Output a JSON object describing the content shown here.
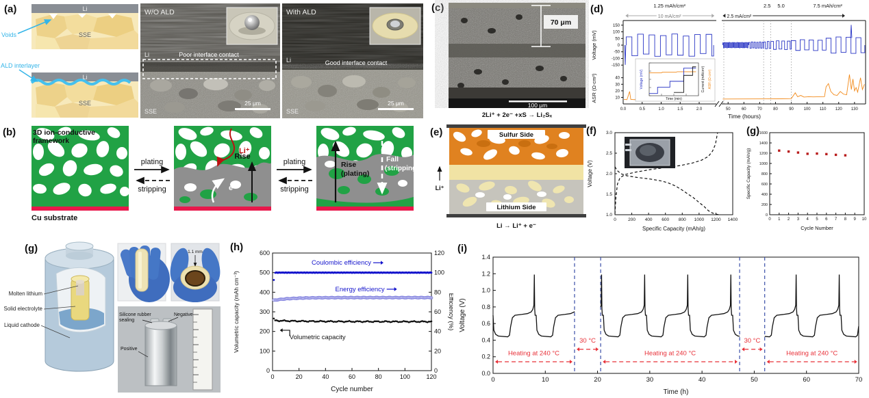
{
  "panels": {
    "a": {
      "label": "(a)",
      "voids": "Voids",
      "ald_interlayer": "ALD interlayer",
      "li": "Li",
      "sse": "SSE",
      "accent": "#35b5e8",
      "sem": [
        {
          "title": "W/O ALD",
          "li": "Li",
          "sse": "SSE",
          "note": "Poor interface contact",
          "scale": "25 μm"
        },
        {
          "title": "With ALD",
          "li": "Li",
          "sse": "SSE",
          "note": "Good interface contact",
          "scale": "25 μm"
        }
      ]
    },
    "b": {
      "label": "(b)",
      "framework_line1": "3D ion-conductive",
      "framework_line2": "framework",
      "cu": "Cu substrate",
      "plating": "plating",
      "stripping": "stripping",
      "li_ion": "Li⁺",
      "electron": "e⁻",
      "rise": "Rise",
      "rise2": "Rise",
      "rise2b": "(plating)",
      "fall": "Fall",
      "fallb": "(stripping)"
    },
    "c": {
      "label": "(c)",
      "thickness": "70 μm",
      "scale": "100 μm",
      "equation": "2Li⁺ + 2e⁻ +xS → Li₂Sₓ"
    },
    "e": {
      "label": "(e)",
      "sulfur": "Sulfur Side",
      "lithium": "Lithium Side",
      "li_ion": "Li⁺",
      "equation": "Li → Li⁺ + e⁻"
    },
    "g3d": {
      "label": "(g)",
      "molten": "Molten lithium",
      "solid": "Solid electrolyte",
      "liquid": "Liquid cathode",
      "thickness": "1.1 mm",
      "sealing1": "Silicone rubber",
      "sealing2": "sealing",
      "negative": "Negative",
      "positive": "Positive"
    }
  },
  "chart_data": [
    {
      "id": "d",
      "type": "line",
      "panel_label": "(d)",
      "xlabel": "Time (hours)",
      "ylabel_top": "Voltage (mV)",
      "ylabel_bottom": "ASR (Ω-cm²)",
      "top": {
        "ylim": [
          -185,
          185
        ],
        "yticks": [
          150,
          100,
          50,
          0,
          -50,
          -100,
          -150
        ]
      },
      "bottom": {
        "ylim": [
          0,
          48
        ],
        "yticks": [
          10,
          20,
          30,
          40
        ]
      },
      "x_left": {
        "lim": [
          0,
          2.45
        ],
        "ticks": [
          0.0,
          0.5,
          1.0,
          1.5,
          2.0
        ]
      },
      "x_right": {
        "lim": [
          46,
          137
        ],
        "ticks": [
          50,
          60,
          70,
          80,
          90,
          100,
          110,
          120,
          130
        ]
      },
      "dividers": [
        47.3,
        72.5,
        77,
        90
      ],
      "cap_labels": [
        {
          "text": "1.25 mAh/cm²",
          "t": 1.22
        },
        {
          "text": "2.5",
          "t": 74.7
        },
        {
          "text": "5.0",
          "t": 83.5
        },
        {
          "text": "7.5 mAh/cm²",
          "t": 113
        }
      ],
      "current_arrows": [
        {
          "text": "10 mA/cm²",
          "t0": 0.06,
          "t1": 2.4,
          "t_label": 1.22,
          "color": "#a9a9a9",
          "text_color": "#777777"
        },
        {
          "text": "2.5 mA/cm²",
          "t0": 46.6,
          "t1": 124,
          "t_label": 57,
          "color": "#222222",
          "text_color": "#111111"
        }
      ],
      "colors": {
        "voltage": "#2733c4",
        "asr": "#f28a1a"
      },
      "v_init": [
        [
          0.04,
          0
        ],
        [
          0.055,
          -148
        ],
        [
          0.07,
          0
        ]
      ],
      "v_segments": [
        {
          "x0": 0.08,
          "x1": 2.38,
          "period": 0.3,
          "amp": 62,
          "var": 22
        },
        {
          "x0": 46.6,
          "x1": 63,
          "period": 1.0,
          "amp": 17,
          "var": 3
        },
        {
          "x0": 63,
          "x1": 72.5,
          "period": 1.7,
          "amp": 20,
          "var": 4
        },
        {
          "x0": 72.5,
          "x1": 77,
          "period": 2.3,
          "amp": 24,
          "var": 4
        },
        {
          "x0": 77,
          "x1": 90,
          "period": 3.5,
          "amp": 28,
          "var": 5
        },
        {
          "x0": 90,
          "x1": 112,
          "period": 5.6,
          "amp": 34,
          "var": 7
        },
        {
          "x0": 112,
          "x1": 136.5,
          "period": 6.3,
          "amp": 52,
          "var": 10
        }
      ],
      "v_spike": [
        [
          127.5,
          55
        ],
        [
          127.9,
          152
        ],
        [
          128.3,
          55
        ]
      ],
      "asr_left": [
        [
          0.02,
          7
        ],
        [
          0.1,
          6.5
        ],
        [
          0.17,
          19
        ],
        [
          0.2,
          7
        ],
        [
          0.3,
          6.5
        ],
        [
          0.38,
          9
        ],
        [
          0.45,
          6.8
        ],
        [
          0.55,
          8.5
        ],
        [
          0.62,
          6.6
        ],
        [
          0.72,
          8
        ],
        [
          0.8,
          9.5
        ],
        [
          0.9,
          6.7
        ],
        [
          1.0,
          8
        ],
        [
          1.08,
          10
        ],
        [
          1.15,
          6.8
        ],
        [
          1.25,
          8.5
        ],
        [
          1.35,
          6.6
        ],
        [
          1.45,
          8.8
        ],
        [
          1.55,
          6.7
        ],
        [
          1.65,
          9
        ],
        [
          1.75,
          6.8
        ],
        [
          1.85,
          8
        ],
        [
          1.95,
          9.5
        ],
        [
          2.05,
          6.8
        ],
        [
          2.15,
          9
        ],
        [
          2.25,
          6.9
        ],
        [
          2.32,
          8.5
        ],
        [
          2.4,
          7
        ]
      ],
      "asr_right": [
        [
          46.6,
          7.5
        ],
        [
          60,
          7.6
        ],
        [
          75,
          7.8
        ],
        [
          88,
          8
        ],
        [
          90,
          8.2
        ],
        [
          92.5,
          17
        ],
        [
          94,
          11
        ],
        [
          96,
          13
        ],
        [
          98,
          10.5
        ],
        [
          101,
          11
        ],
        [
          104,
          10.8
        ],
        [
          108,
          11
        ],
        [
          111,
          11.2
        ],
        [
          112,
          26
        ],
        [
          113.5,
          31
        ],
        [
          115,
          19
        ],
        [
          117,
          14
        ],
        [
          119,
          13
        ],
        [
          121,
          19
        ],
        [
          123,
          15
        ],
        [
          125,
          14
        ],
        [
          126.8,
          45
        ],
        [
          128,
          22
        ],
        [
          129,
          38
        ],
        [
          130,
          20
        ],
        [
          131,
          25
        ],
        [
          132,
          18
        ],
        [
          133.8,
          40
        ],
        [
          135,
          22
        ],
        [
          136.3,
          30
        ]
      ],
      "inset": {
        "ylabel": "Voltage (mV)",
        "xlabel": "Time (min)",
        "right_label_1": "Current (mA/cm²)",
        "right_label_2": "ASR (Ω·cm²)",
        "series": {
          "orange": [
            [
              0.0,
              0.3
            ],
            [
              0.25,
              0.3
            ],
            [
              0.27,
              0.28
            ],
            [
              0.55,
              0.28
            ],
            [
              0.57,
              0.27
            ],
            [
              0.95,
              0.27
            ]
          ],
          "blue": [
            [
              0.0,
              0.93
            ],
            [
              0.17,
              0.93
            ],
            [
              0.17,
              0.74
            ],
            [
              0.42,
              0.74
            ],
            [
              0.42,
              0.56
            ],
            [
              0.7,
              0.56
            ],
            [
              0.7,
              0.16
            ],
            [
              0.95,
              0.16
            ]
          ],
          "black": [
            [
              0.5,
              0.9
            ],
            [
              0.7,
              0.9
            ],
            [
              0.7,
              0.38
            ],
            [
              0.88,
              0.38
            ],
            [
              0.88,
              0.12
            ],
            [
              0.95,
              0.12
            ]
          ]
        }
      }
    },
    {
      "id": "f",
      "type": "line",
      "panel_label": "(f)",
      "xlabel": "Specific Capacity (mAh/g)",
      "ylabel": "Voltage (V)",
      "xlim": [
        0,
        1400
      ],
      "xticks": [
        0,
        200,
        400,
        600,
        800,
        1000,
        1200,
        1400
      ],
      "ylim": [
        1.0,
        3.0
      ],
      "yticks": [
        1.0,
        1.5,
        2.0,
        2.5,
        3.0
      ],
      "color": "#111111",
      "series": [
        {
          "name": "charge",
          "points": [
            [
              0,
              1.02
            ],
            [
              12,
              1.45
            ],
            [
              30,
              1.75
            ],
            [
              60,
              1.9
            ],
            [
              120,
              1.98
            ],
            [
              250,
              2.04
            ],
            [
              420,
              2.1
            ],
            [
              600,
              2.15
            ],
            [
              780,
              2.2
            ],
            [
              920,
              2.26
            ],
            [
              1030,
              2.33
            ],
            [
              1110,
              2.42
            ],
            [
              1160,
              2.55
            ],
            [
              1195,
              2.72
            ],
            [
              1215,
              2.95
            ],
            [
              1220,
              3.0
            ]
          ]
        },
        {
          "name": "discharge",
          "points": [
            [
              0,
              2.17
            ],
            [
              25,
              2.08
            ],
            [
              70,
              2.0
            ],
            [
              140,
              1.95
            ],
            [
              260,
              1.91
            ],
            [
              420,
              1.87
            ],
            [
              560,
              1.82
            ],
            [
              640,
              1.77
            ],
            [
              720,
              1.7
            ],
            [
              800,
              1.6
            ],
            [
              870,
              1.5
            ],
            [
              930,
              1.42
            ],
            [
              1000,
              1.3
            ],
            [
              1060,
              1.2
            ],
            [
              1110,
              1.1
            ],
            [
              1160,
              1.04
            ],
            [
              1210,
              1.01
            ],
            [
              1235,
              1.0
            ]
          ]
        }
      ]
    },
    {
      "id": "g",
      "type": "scatter",
      "panel_label": "(g)",
      "xlabel": "Cycle Number",
      "ylabel": "Specific Capacity (mAh/g)",
      "xlim": [
        0,
        10
      ],
      "xticks": [
        0,
        1,
        2,
        3,
        4,
        5,
        6,
        7,
        8,
        9,
        10
      ],
      "ylim": [
        0,
        1600
      ],
      "yticks": [
        0,
        200,
        400,
        600,
        800,
        1000,
        1200,
        1400,
        1600
      ],
      "color": "#b81c1c",
      "points": [
        [
          1,
          1250
        ],
        [
          2,
          1232
        ],
        [
          3,
          1212
        ],
        [
          4,
          1188
        ],
        [
          5,
          1192
        ],
        [
          6,
          1182
        ],
        [
          7,
          1168
        ],
        [
          8,
          1158
        ]
      ]
    },
    {
      "id": "h",
      "type": "line",
      "panel_label": "(h)",
      "xlabel": "Cycle number",
      "ylabel_left": "Volumetric capacity (mAh cm⁻³)",
      "ylabel_right": "Efficiency (%)",
      "xlim": [
        0,
        120
      ],
      "xticks": [
        0,
        20,
        40,
        60,
        80,
        100,
        120
      ],
      "ylim_left": [
        0,
        600
      ],
      "yticks_left": [
        0,
        100,
        200,
        300,
        400,
        500,
        600
      ],
      "ylim_right": [
        0,
        120
      ],
      "yticks_right": [
        0,
        20,
        40,
        60,
        80,
        100,
        120
      ],
      "series": [
        {
          "name": "Coulombic efficiency",
          "axis": "right",
          "color": "#1414cc",
          "marker": "filled",
          "value": 100,
          "first": 92.5,
          "cycles": 120
        },
        {
          "name": "Energy efficiency",
          "axis": "right",
          "color": "#8787e0",
          "marker": "open",
          "start": 71.5,
          "end": 74.5,
          "cycles": 120
        },
        {
          "name": "Volumetric capacity",
          "axis": "left",
          "color": "#111111",
          "marker": "filled",
          "value": 250,
          "first": 266,
          "cycles": 120
        }
      ],
      "annotations": [
        {
          "text": "Coulombic efficiency",
          "x": 52,
          "y": 108,
          "line_y": 100,
          "color": "#1414cc"
        },
        {
          "text": "Energy efficiency",
          "x": 66,
          "y": 81,
          "line_y": 74.5,
          "color": "#1414cc"
        },
        {
          "text": "Volumetric capacity",
          "x": 34,
          "y": 160,
          "color": "#111111"
        }
      ]
    },
    {
      "id": "i",
      "type": "line",
      "panel_label": "(i)",
      "xlabel": "Time (h)",
      "ylabel": "Voltage (V)",
      "xlim": [
        0,
        70
      ],
      "xticks": [
        0,
        10,
        20,
        30,
        40,
        50,
        60,
        70
      ],
      "ylim": [
        0.0,
        1.4
      ],
      "yticks": [
        0.0,
        0.2,
        0.4,
        0.6,
        0.8,
        1.0,
        1.2,
        1.4
      ],
      "line_color": "#111111",
      "dashed_x": [
        15.6,
        20.6,
        47.2,
        52.0
      ],
      "dashed_color": "#3a4fa8",
      "heat_color": "#e83038",
      "annotations": [
        {
          "text": "Heating at 240 °C",
          "x0": 0.4,
          "x1": 15.2,
          "arrow_y": 0.14,
          "text_y": 0.22
        },
        {
          "text": "30 °C",
          "x0": 16.0,
          "x1": 20.2,
          "arrow_y": 0.29,
          "text_y": 0.37
        },
        {
          "text": "Heating at 240 °C",
          "x0": 21.0,
          "x1": 46.8,
          "arrow_y": 0.14,
          "text_y": 0.22
        },
        {
          "text": "30 °C",
          "x0": 47.6,
          "x1": 51.6,
          "arrow_y": 0.29,
          "text_y": 0.37
        },
        {
          "text": "Heating at 240 °C",
          "x0": 52.4,
          "x1": 69.7,
          "arrow_y": 0.14,
          "text_y": 0.22
        }
      ],
      "cycle_period": 8.25,
      "cycle_shape": [
        [
          0,
          0.7
        ],
        [
          0.15,
          0.52
        ],
        [
          0.5,
          0.47
        ],
        [
          1.0,
          0.45
        ],
        [
          2.8,
          0.44
        ],
        [
          3.15,
          0.46
        ],
        [
          3.35,
          0.56
        ],
        [
          3.7,
          0.67
        ],
        [
          4.2,
          0.7
        ],
        [
          5.5,
          0.71
        ],
        [
          6.6,
          0.72
        ],
        [
          7.3,
          0.74
        ],
        [
          7.6,
          0.77
        ],
        [
          7.82,
          0.82
        ],
        [
          7.9,
          1.19
        ],
        [
          7.97,
          0.78
        ],
        [
          8.05,
          0.7
        ],
        [
          8.25,
          0.7
        ]
      ],
      "windows": [
        {
          "x0": 0,
          "x1": 15.6,
          "phase": 0
        },
        {
          "x0": 20.6,
          "x1": 47.2,
          "phase": 7.73
        },
        {
          "x0": 52.0,
          "x1": 70,
          "phase": 1.88
        }
      ]
    }
  ]
}
